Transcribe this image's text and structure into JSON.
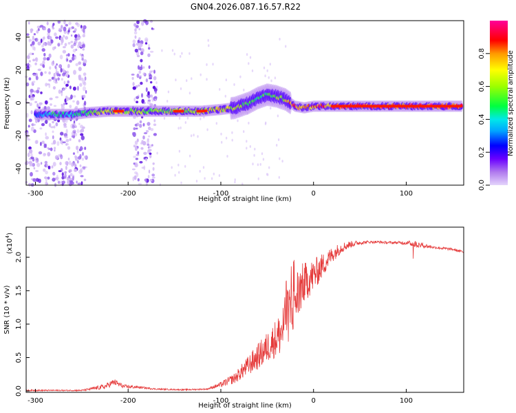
{
  "title": "GN04.2026.087.16.57.R22",
  "colors": {
    "snr_line": "#e53a3a",
    "spectrum_cool": "#3a00ff",
    "spectrum_hot": "#ff0000",
    "scatter": "#9966ee"
  },
  "chart_data": [
    {
      "type": "heatmap",
      "name": "spectrogram",
      "xlabel": "Height of straight line (km)",
      "ylabel": "Frequency (Hz)",
      "xlim": [
        -310,
        162
      ],
      "ylim": [
        -50,
        50
      ],
      "x_ticks": [
        -300,
        -200,
        -100,
        0,
        100
      ],
      "x_tick_labels": [
        "-300",
        "-200",
        "-100",
        "0",
        "100"
      ],
      "y_ticks": [
        -40,
        -20,
        0,
        20,
        40
      ],
      "y_tick_labels": [
        "-40",
        "-20",
        "0",
        "20",
        "40"
      ],
      "noise_regions_km": [
        [
          -310,
          -245
        ],
        [
          -195,
          -170
        ]
      ],
      "ridge": {
        "x": [
          -300,
          -280,
          -260,
          -245,
          -220,
          -200,
          -180,
          -150,
          -120,
          -100,
          -85,
          -70,
          -60,
          -50,
          -40,
          -30,
          -20,
          -10,
          0,
          20,
          50,
          100,
          130,
          162
        ],
        "freq": [
          -7,
          -7,
          -7,
          -6,
          -5,
          -5,
          -5,
          -5,
          -5,
          -4,
          -3,
          0,
          3,
          5,
          4,
          2,
          -2,
          -3,
          -2,
          -2,
          -2,
          -2,
          -2,
          -2
        ],
        "amp": [
          0.3,
          0.5,
          0.45,
          0.55,
          0.75,
          0.7,
          0.6,
          0.65,
          0.7,
          0.75,
          0.7,
          0.55,
          0.5,
          0.55,
          0.6,
          0.75,
          0.95,
          0.85,
          0.9,
          0.95,
          0.97,
          0.95,
          0.97,
          0.9
        ]
      },
      "colorbar": {
        "label": "Normalized spectral amplitude",
        "range": [
          0,
          1
        ],
        "ticks": [
          0.0,
          0.2,
          0.4,
          0.6,
          0.8
        ],
        "tick_labels": [
          "0.0",
          "0.2",
          "0.4",
          "0.6",
          "0.8"
        ]
      }
    },
    {
      "type": "line",
      "name": "snr",
      "xlabel": "Height of straight line (km)",
      "ylabel": "SNR (10 * v/v)",
      "y_scale_label": "(x10",
      "y_scale_exp": "4",
      "y_scale_close": ")",
      "xlim": [
        -310,
        162
      ],
      "ylim": [
        -0.02,
        2.45
      ],
      "x_ticks": [
        -300,
        -200,
        -100,
        0,
        100
      ],
      "x_tick_labels": [
        "-300",
        "-200",
        "-100",
        "0",
        "100"
      ],
      "y_ticks": [
        0.0,
        0.5,
        1.0,
        1.5,
        2.0
      ],
      "y_tick_labels": [
        "0.0",
        "0.5",
        "1.0",
        "1.5",
        "2.0"
      ],
      "x": [
        -310,
        -250,
        -225,
        -215,
        -205,
        -190,
        -170,
        -140,
        -115,
        -100,
        -85,
        -70,
        -55,
        -45,
        -35,
        -30,
        -25,
        -20,
        -15,
        -10,
        0,
        10,
        20,
        30,
        40,
        50,
        60,
        70,
        80,
        90,
        100,
        110,
        130,
        150,
        162
      ],
      "values": [
        0.01,
        0.01,
        0.07,
        0.14,
        0.07,
        0.06,
        0.03,
        0.02,
        0.03,
        0.1,
        0.2,
        0.4,
        0.6,
        0.75,
        0.9,
        1.1,
        1.25,
        1.4,
        1.55,
        1.65,
        1.75,
        1.9,
        2.05,
        2.15,
        2.2,
        2.22,
        2.23,
        2.23,
        2.22,
        2.22,
        2.22,
        2.2,
        2.15,
        2.12,
        2.08
      ],
      "noise": [
        0.01,
        0.01,
        0.04,
        0.05,
        0.03,
        0.02,
        0.01,
        0.01,
        0.01,
        0.04,
        0.08,
        0.15,
        0.22,
        0.25,
        0.35,
        0.4,
        0.45,
        0.45,
        0.4,
        0.3,
        0.25,
        0.18,
        0.12,
        0.08,
        0.05,
        0.03,
        0.02,
        0.02,
        0.02,
        0.02,
        0.03,
        0.05,
        0.02,
        0.02,
        0.02
      ]
    }
  ]
}
